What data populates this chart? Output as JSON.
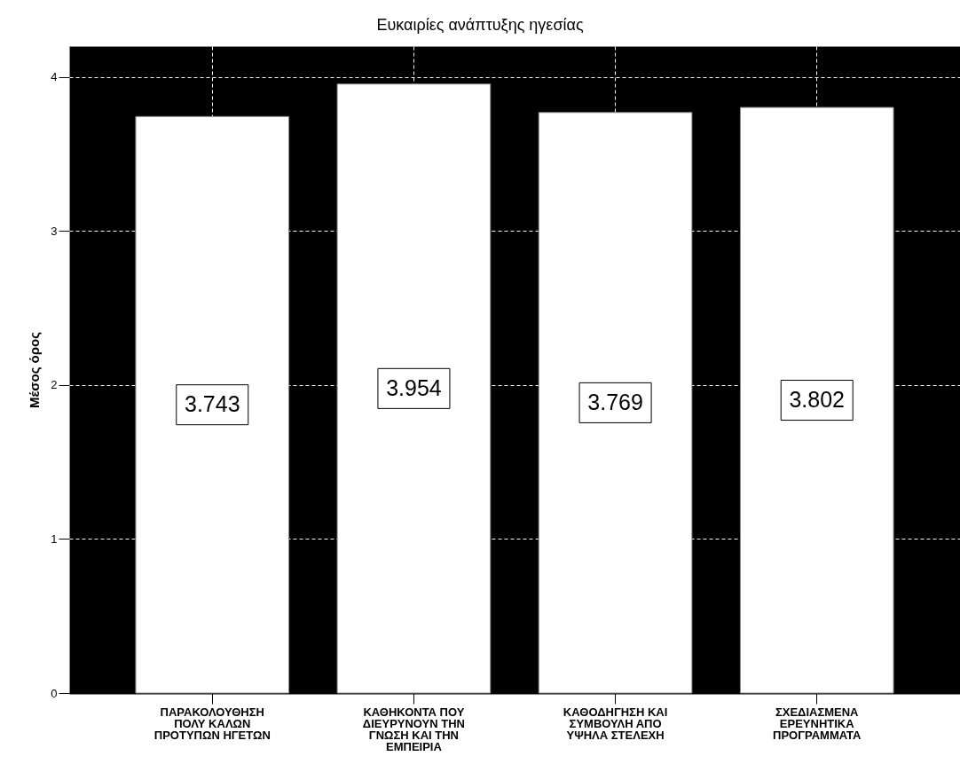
{
  "chart_data": {
    "type": "bar",
    "title": "Ευκαιρίες ανάπτυξης ηγεσίας",
    "ylabel": "Μέσος όρος",
    "categories": [
      "ΠΑΡΑΚΟΛΟΥΘΗΣΗ ΠΟΛΥ ΚΑΛΩΝ ΠΡΟΤΥΠΩΝ ΗΓΕΤΩΝ",
      "ΚΑΘΗΚΟΝΤΑ ΠΟΥ ΔΙΕΥΡΥΝΟΥΝ ΤΗΝ ΓΝΩΣΗ ΚΑΙ ΤΗΝ ΕΜΠΕΙΡΙΑ",
      "ΚΑΘΟΔΗΓΗΣΗ ΚΑΙ ΣΥΜΒΟΥΛΗ ΑΠΟ ΥΨΗΛΑ ΣΤΕΛΕΧΗ",
      "ΣΧΕΔΙΑΣΜΕΝΑ ΕΡΕΥΝΗΤΙΚΑ ΠΡΟΓΡΑΜΜΑΤΑ"
    ],
    "values": [
      3.743,
      3.954,
      3.769,
      3.802
    ],
    "color": "#ffffff",
    "ylim": [
      0,
      4.2
    ],
    "yticks": [
      0,
      1,
      2,
      3,
      4
    ],
    "grid": true,
    "data_labels": true
  }
}
